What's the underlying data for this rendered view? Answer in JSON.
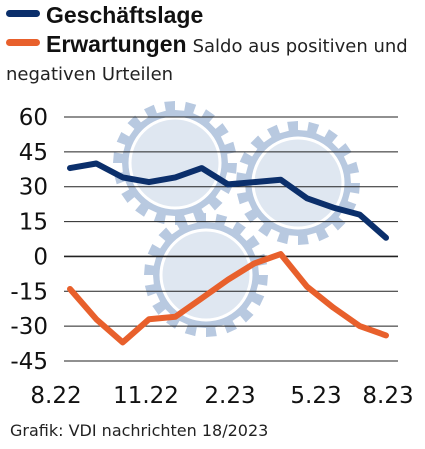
{
  "legend": {
    "series1_label": "Geschäftslage",
    "series2_label": "Erwartungen",
    "note_line1": "Saldo aus positiven und",
    "note_line2": "negativen Urteilen"
  },
  "source": "Grafik: VDI nachrichten 18/2023",
  "colors": {
    "series1": "#0b2f6b",
    "series2": "#e8602c",
    "gear": "#b8c9e0",
    "grid": "#222222"
  },
  "chart_data": {
    "type": "line",
    "x": [
      "8.22",
      "9.22",
      "10.22",
      "11.22",
      "12.22",
      "1.23",
      "2.23",
      "3.23",
      "4.23",
      "5.23",
      "6.23",
      "7.23",
      "8.23"
    ],
    "x_tick_labels": [
      "8.22",
      "11.22",
      "2.23",
      "5.23",
      "8.23"
    ],
    "y_ticks": [
      60,
      45,
      30,
      15,
      0,
      -15,
      -30,
      -45
    ],
    "ylim": [
      -45,
      60
    ],
    "series": [
      {
        "name": "Geschäftslage",
        "color": "#0b2f6b",
        "values": [
          38,
          40,
          34,
          32,
          34,
          38,
          31,
          32,
          33,
          25,
          21,
          18,
          8
        ]
      },
      {
        "name": "Erwartungen",
        "color": "#e8602c",
        "values": [
          -14,
          -27,
          -37,
          -27,
          -26,
          -18,
          -10,
          -3,
          1,
          -13,
          -22,
          -30,
          -34
        ]
      }
    ]
  }
}
